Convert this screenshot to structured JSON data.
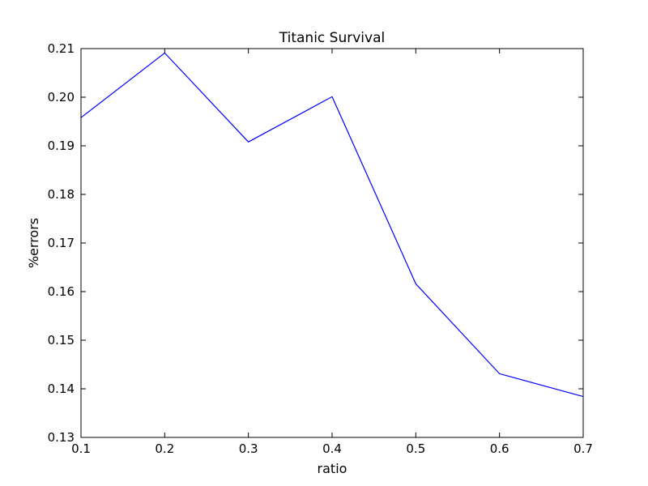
{
  "chart_data": {
    "type": "line",
    "title": "Titanic Survival",
    "xlabel": "ratio",
    "ylabel": "%errors",
    "xlim": [
      0.1,
      0.7
    ],
    "ylim": [
      0.13,
      0.21
    ],
    "xticks": [
      "0.1",
      "0.2",
      "0.3",
      "0.4",
      "0.5",
      "0.6",
      "0.7"
    ],
    "yticks": [
      "0.13",
      "0.14",
      "0.15",
      "0.16",
      "0.17",
      "0.18",
      "0.19",
      "0.20",
      "0.21"
    ],
    "grid": false,
    "series": [
      {
        "color": "#0000ff",
        "x": [
          0.1,
          0.2,
          0.3,
          0.4,
          0.5,
          0.6,
          0.7
        ],
        "y": [
          0.1958,
          0.2091,
          0.1908,
          0.2001,
          0.1616,
          0.1431,
          0.1384
        ]
      }
    ]
  }
}
